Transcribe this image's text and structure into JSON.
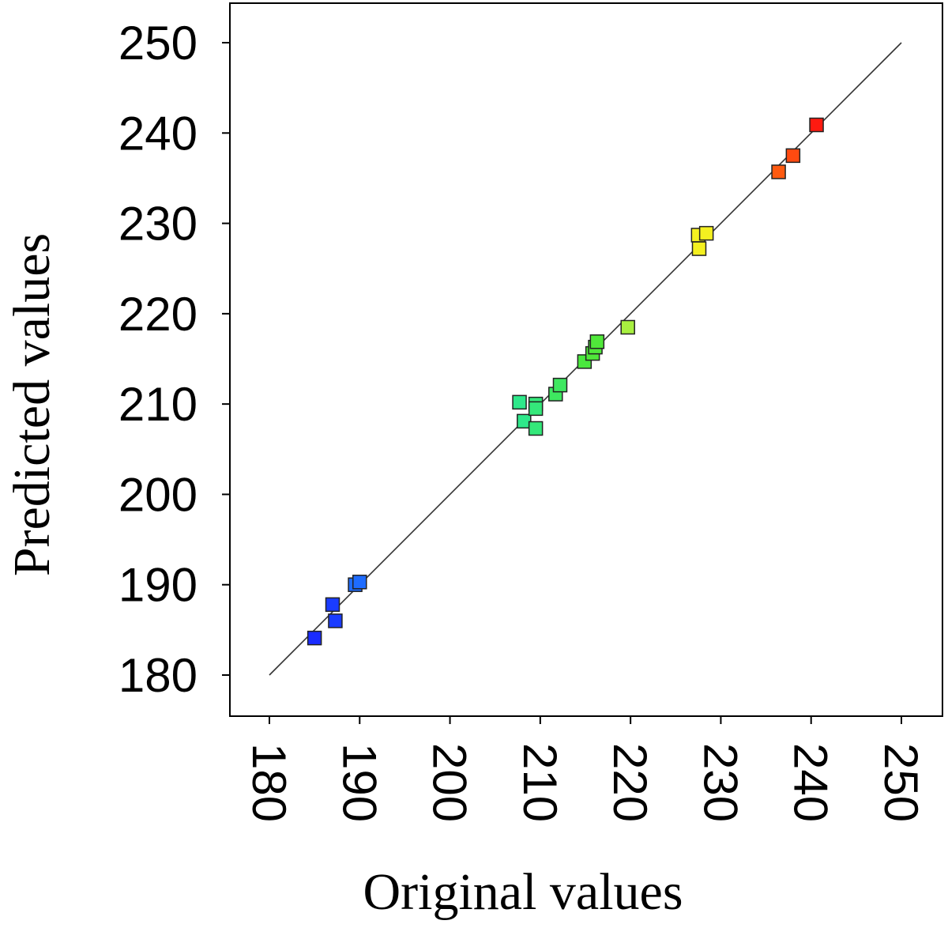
{
  "chart_data": {
    "type": "scatter",
    "title": "",
    "xlabel": "Original values",
    "ylabel": "Predicted values",
    "xlim": [
      180,
      250
    ],
    "ylim": [
      180,
      250
    ],
    "xticks": [
      "180",
      "190",
      "200",
      "210",
      "220",
      "230",
      "240",
      "250"
    ],
    "yticks": [
      "180",
      "190",
      "200",
      "210",
      "220",
      "230",
      "240",
      "250"
    ],
    "grid": false,
    "reference_line": {
      "from": [
        180,
        180
      ],
      "to": [
        250,
        250
      ]
    },
    "marker": "square",
    "color_scale": [
      "#1030ff",
      "#1e6cff",
      "#2ee88a",
      "#3ee860",
      "#a8f040",
      "#f4f020",
      "#ff5a10",
      "#ff1a10"
    ],
    "points": [
      {
        "x": 185.0,
        "y": 184.1,
        "color": "#1a2cff"
      },
      {
        "x": 187.0,
        "y": 187.8,
        "color": "#1a3cff"
      },
      {
        "x": 187.3,
        "y": 186.0,
        "color": "#1a3cff"
      },
      {
        "x": 189.5,
        "y": 190.0,
        "color": "#1e6cff"
      },
      {
        "x": 190.0,
        "y": 190.3,
        "color": "#1e6cff"
      },
      {
        "x": 207.7,
        "y": 210.2,
        "color": "#2ee88a"
      },
      {
        "x": 208.2,
        "y": 208.1,
        "color": "#2ee88a"
      },
      {
        "x": 209.5,
        "y": 210.0,
        "color": "#34e87a"
      },
      {
        "x": 209.5,
        "y": 209.5,
        "color": "#34e87a"
      },
      {
        "x": 209.5,
        "y": 207.3,
        "color": "#34e87a"
      },
      {
        "x": 211.7,
        "y": 211.1,
        "color": "#3ee860"
      },
      {
        "x": 212.2,
        "y": 212.1,
        "color": "#3ee860"
      },
      {
        "x": 214.9,
        "y": 214.7,
        "color": "#4ae83e"
      },
      {
        "x": 215.8,
        "y": 215.6,
        "color": "#50e83a"
      },
      {
        "x": 216.1,
        "y": 216.3,
        "color": "#50e83a"
      },
      {
        "x": 216.3,
        "y": 216.9,
        "color": "#50e83a"
      },
      {
        "x": 219.7,
        "y": 218.5,
        "color": "#a8f040"
      },
      {
        "x": 227.5,
        "y": 228.7,
        "color": "#f4f020"
      },
      {
        "x": 228.4,
        "y": 228.9,
        "color": "#f4f020"
      },
      {
        "x": 227.6,
        "y": 227.2,
        "color": "#f4f020"
      },
      {
        "x": 236.4,
        "y": 235.7,
        "color": "#ff5a10"
      },
      {
        "x": 238.0,
        "y": 237.5,
        "color": "#ff4a10"
      },
      {
        "x": 240.6,
        "y": 240.9,
        "color": "#ff1a10"
      }
    ]
  }
}
